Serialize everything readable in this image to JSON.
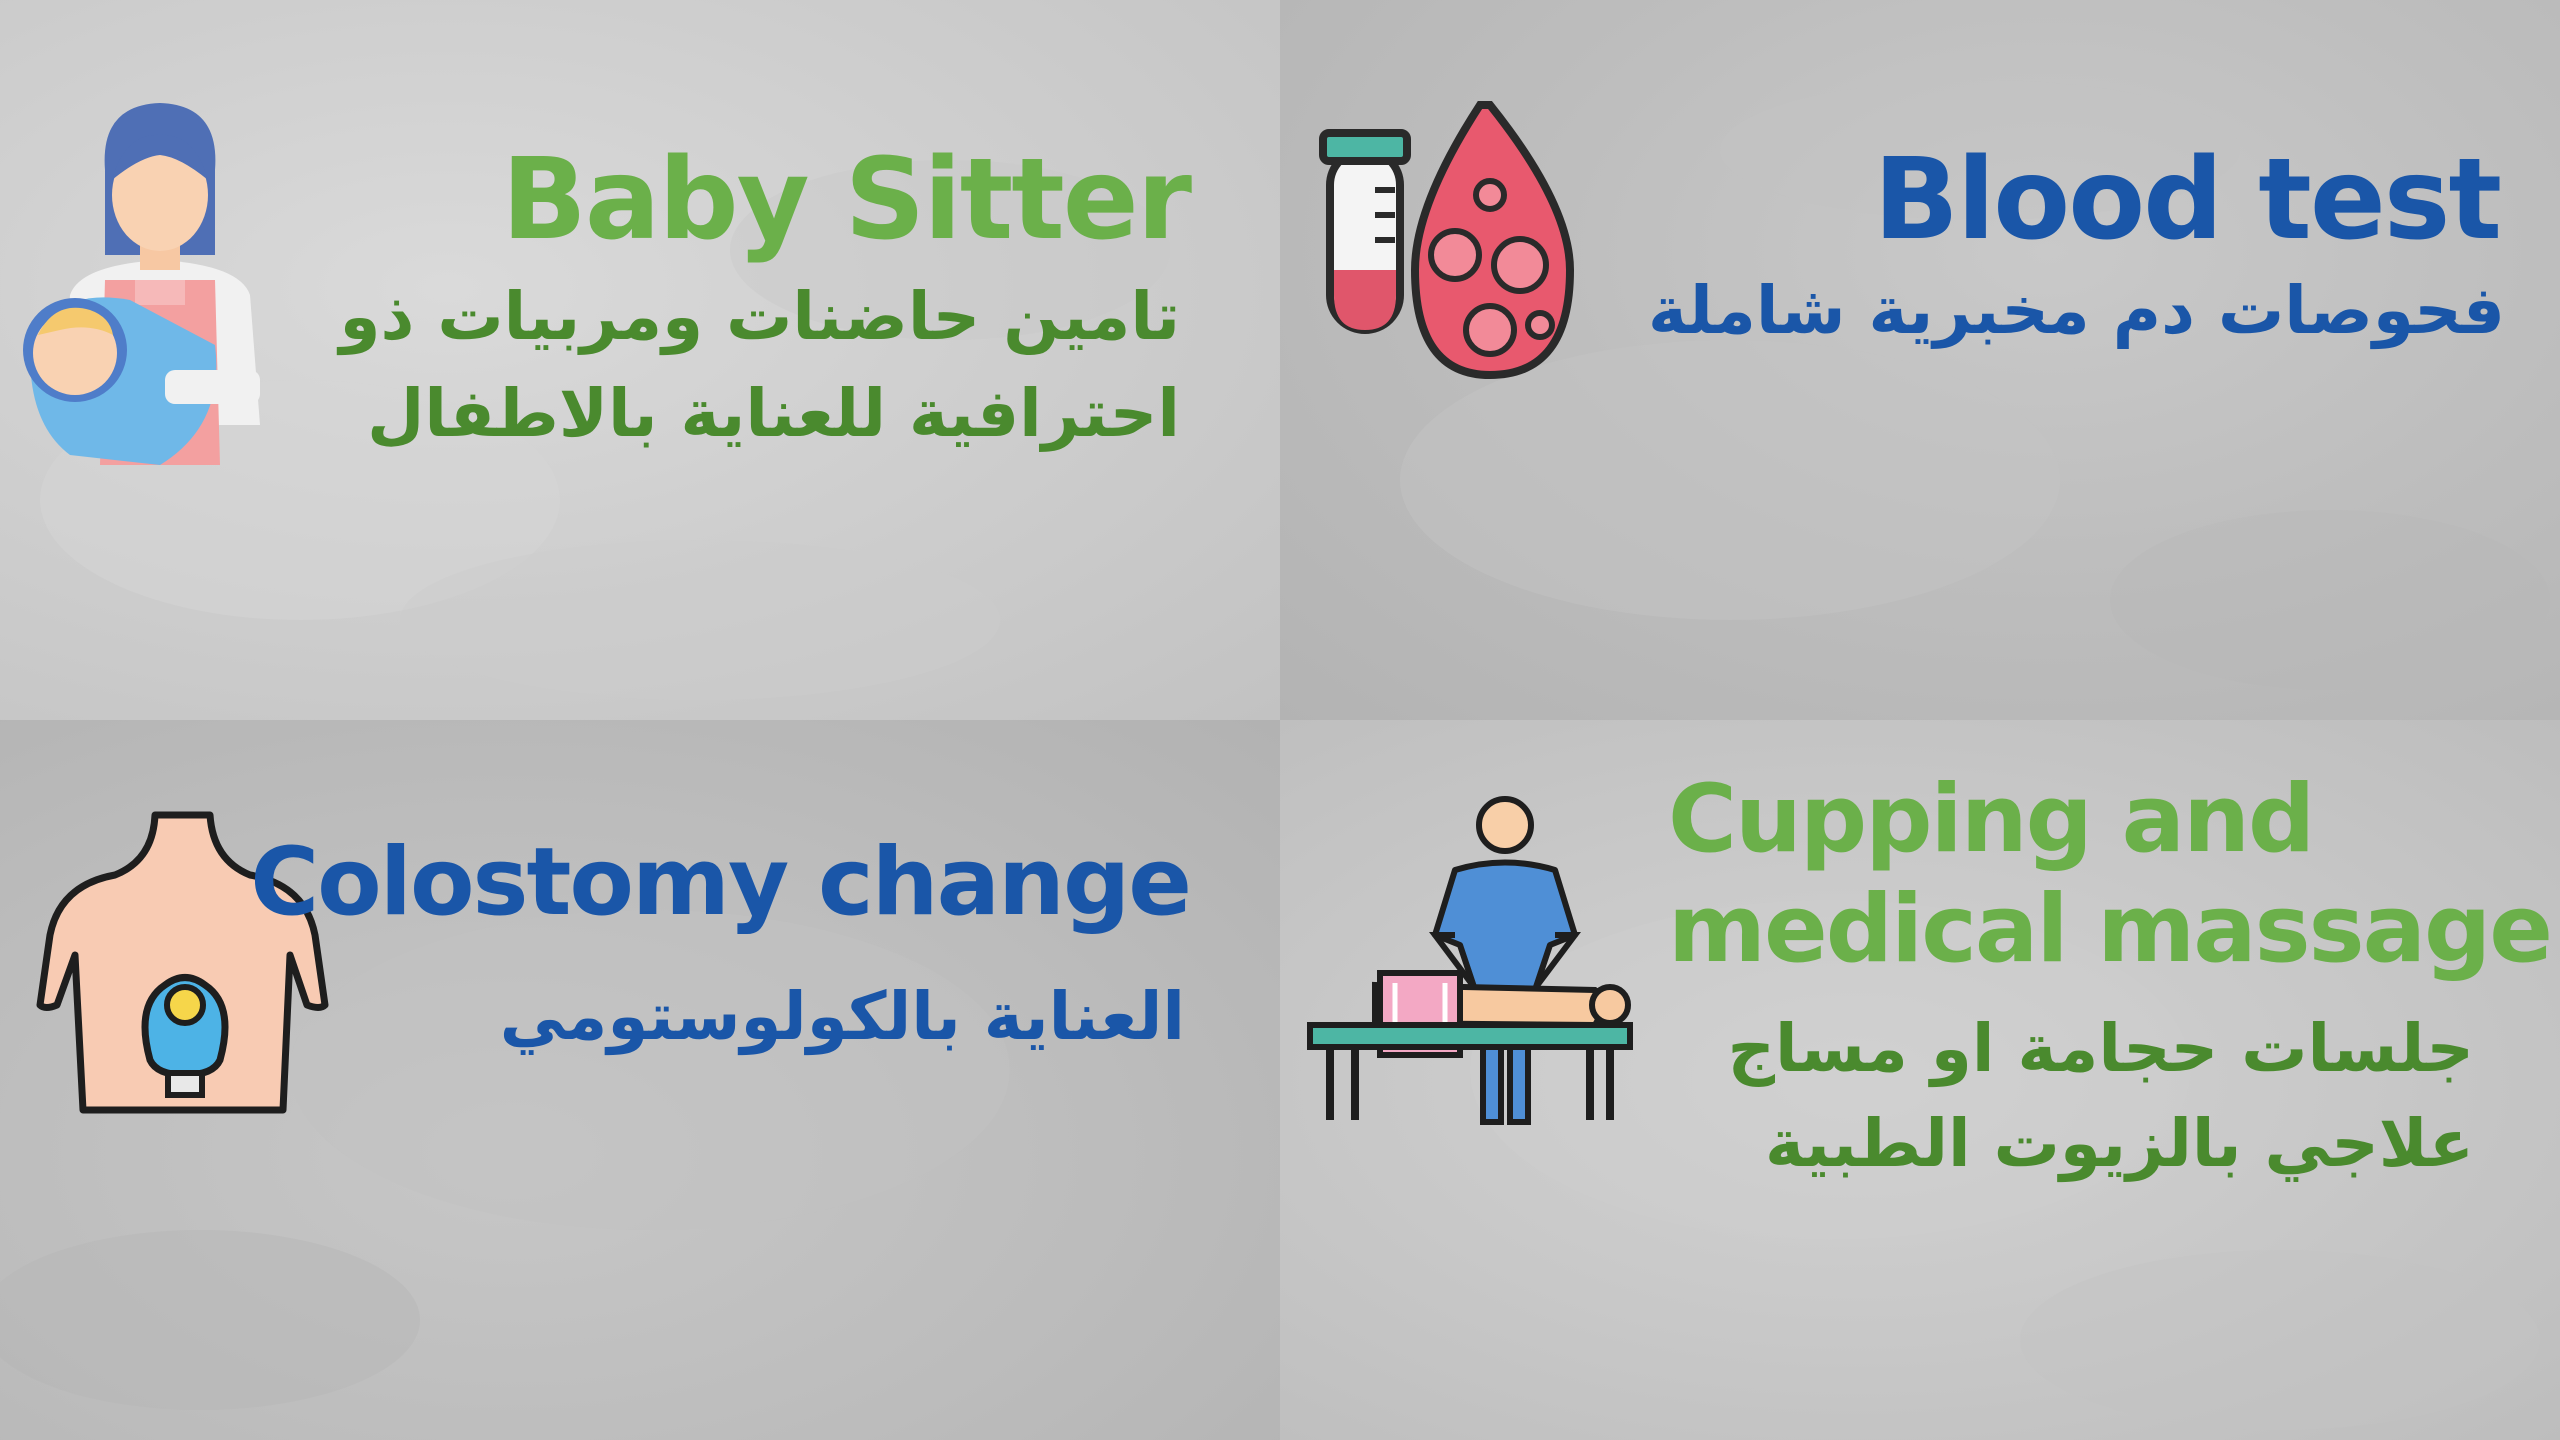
{
  "cards": [
    {
      "title": "Baby Sitter",
      "arabic_lines": [
        "تامين حاضنات ومربيات ذو",
        "احترافية للعناية بالاطفال"
      ],
      "icon": "baby-sitter-icon",
      "title_color": "#6bb04a",
      "text_color": "#4a8a2e"
    },
    {
      "title": "Blood test",
      "arabic_lines": [
        "فحوصات دم مخبرية شاملة"
      ],
      "icon": "blood-test-icon",
      "title_color": "#1a56a8",
      "text_color": "#1a56a8"
    },
    {
      "title": "Colostomy change",
      "arabic_lines": [
        "العناية بالكولوستومي"
      ],
      "icon": "colostomy-icon",
      "title_color": "#1a56a8",
      "text_color": "#1a56a8"
    },
    {
      "title_lines": [
        "Cupping and",
        "medical massage"
      ],
      "arabic_lines": [
        "جلسات حجامة او مساج",
        "علاجي بالزيوت الطبية"
      ],
      "icon": "massage-icon",
      "title_color": "#6bb04a",
      "text_color": "#4a8a2e"
    }
  ]
}
